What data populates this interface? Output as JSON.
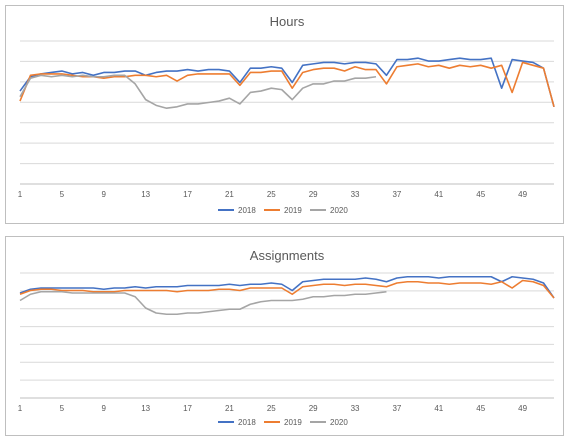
{
  "colors": {
    "2018": "#4472c4",
    "2019": "#ed7d31",
    "2020": "#a5a5a5"
  },
  "chart_data": [
    {
      "type": "line",
      "title": "Hours",
      "xlabel": "",
      "ylabel": "",
      "ylim": [
        0,
        100
      ],
      "grid": true,
      "legend_position": "bottom",
      "x_tick_labels": [
        "1",
        "5",
        "9",
        "13",
        "17",
        "21",
        "25",
        "29",
        "33",
        "37",
        "41",
        "45",
        "49"
      ],
      "x": [
        1,
        2,
        3,
        4,
        5,
        6,
        7,
        8,
        9,
        10,
        11,
        12,
        13,
        14,
        15,
        16,
        17,
        18,
        19,
        20,
        21,
        22,
        23,
        24,
        25,
        26,
        27,
        28,
        29,
        30,
        31,
        32,
        33,
        34,
        35,
        36,
        37,
        38,
        39,
        40,
        41,
        42,
        43,
        44,
        45,
        46,
        47,
        48,
        49,
        50,
        51,
        52
      ],
      "series": [
        {
          "name": "2018",
          "values": [
            65,
            75,
            77,
            78,
            79,
            77,
            78,
            76,
            78,
            78,
            79,
            79,
            76,
            78,
            79,
            79,
            80,
            79,
            80,
            80,
            79,
            71,
            81,
            81,
            82,
            81,
            71,
            83,
            84,
            85,
            85,
            84,
            85,
            85,
            84,
            76,
            87,
            87,
            88,
            86,
            86,
            87,
            88,
            87,
            87,
            88,
            67,
            87,
            86,
            85,
            81,
            54
          ]
        },
        {
          "name": "2019",
          "values": [
            58,
            76,
            77,
            77,
            77,
            76,
            75,
            75,
            74,
            75,
            75,
            76,
            76,
            75,
            76,
            72,
            76,
            77,
            77,
            77,
            77,
            69,
            78,
            78,
            79,
            79,
            67,
            78,
            80,
            81,
            81,
            79,
            82,
            80,
            80,
            70,
            82,
            83,
            84,
            82,
            83,
            81,
            83,
            82,
            83,
            81,
            83,
            64,
            85,
            83,
            81,
            54
          ]
        },
        {
          "name": "2020",
          "values": [
            61,
            74,
            76,
            75,
            76,
            75,
            76,
            75,
            75,
            76,
            76,
            70,
            59,
            55,
            53,
            54,
            56,
            56,
            57,
            58,
            60,
            56,
            64,
            65,
            67,
            66,
            59,
            67,
            70,
            70,
            72,
            72,
            74,
            74,
            75,
            null,
            null,
            null,
            null,
            null,
            null,
            null,
            null,
            null,
            null,
            null,
            null,
            null,
            null,
            null,
            null,
            null
          ]
        }
      ]
    },
    {
      "type": "line",
      "title": "Assignments",
      "xlabel": "",
      "ylabel": "",
      "ylim": [
        0,
        100
      ],
      "grid": true,
      "legend_position": "bottom",
      "x_tick_labels": [
        "1",
        "5",
        "9",
        "13",
        "17",
        "21",
        "25",
        "29",
        "33",
        "37",
        "41",
        "45",
        "49"
      ],
      "x": [
        1,
        2,
        3,
        4,
        5,
        6,
        7,
        8,
        9,
        10,
        11,
        12,
        13,
        14,
        15,
        16,
        17,
        18,
        19,
        20,
        21,
        22,
        23,
        24,
        25,
        26,
        27,
        28,
        29,
        30,
        31,
        32,
        33,
        34,
        35,
        36,
        37,
        38,
        39,
        40,
        41,
        42,
        43,
        44,
        45,
        46,
        47,
        48,
        49,
        50,
        51,
        52
      ],
      "series": [
        {
          "name": "2018",
          "values": [
            84,
            87,
            88,
            88,
            88,
            88,
            88,
            88,
            87,
            88,
            88,
            89,
            88,
            89,
            89,
            89,
            90,
            90,
            90,
            90,
            91,
            90,
            91,
            91,
            92,
            91,
            86,
            93,
            94,
            95,
            95,
            95,
            95,
            96,
            95,
            93,
            96,
            97,
            97,
            97,
            96,
            97,
            97,
            97,
            97,
            97,
            93,
            97,
            96,
            95,
            92,
            80
          ]
        },
        {
          "name": "2019",
          "values": [
            83,
            86,
            87,
            87,
            86,
            86,
            86,
            85,
            85,
            85,
            86,
            86,
            86,
            86,
            86,
            85,
            86,
            86,
            86,
            87,
            87,
            86,
            88,
            88,
            88,
            88,
            83,
            89,
            90,
            91,
            91,
            90,
            91,
            91,
            90,
            89,
            92,
            93,
            93,
            92,
            92,
            91,
            92,
            92,
            92,
            91,
            93,
            88,
            94,
            93,
            90,
            80
          ]
        },
        {
          "name": "2020",
          "values": [
            78,
            83,
            85,
            85,
            85,
            84,
            84,
            84,
            84,
            84,
            84,
            81,
            72,
            68,
            67,
            67,
            68,
            68,
            69,
            70,
            71,
            71,
            75,
            77,
            78,
            78,
            78,
            79,
            81,
            81,
            82,
            82,
            83,
            83,
            84,
            85,
            null,
            null,
            null,
            null,
            null,
            null,
            null,
            null,
            null,
            null,
            null,
            null,
            null,
            null,
            null,
            null
          ]
        }
      ]
    }
  ]
}
